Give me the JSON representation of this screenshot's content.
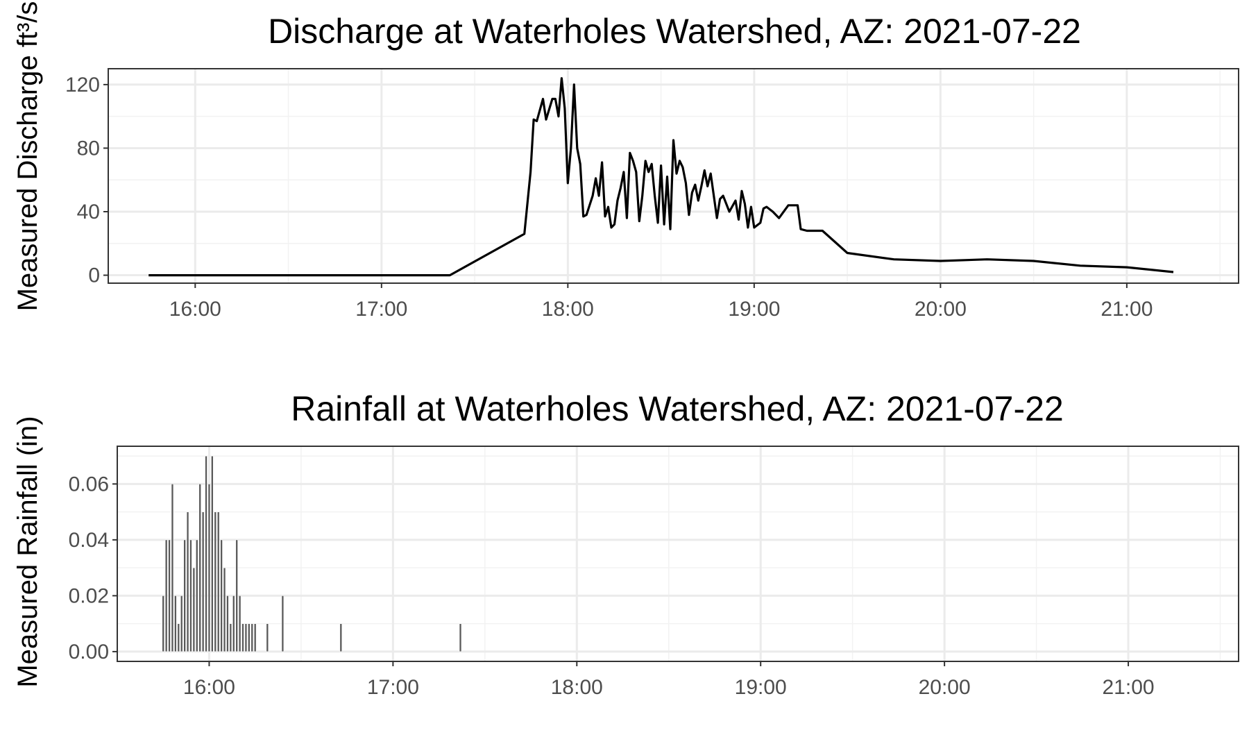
{
  "chart_data": [
    {
      "type": "line",
      "title": "Discharge at Waterholes Watershed, AZ: 2021-07-22",
      "xlabel": "",
      "ylabel": "Measured Discharge ft³/s",
      "x_is_time": true,
      "xlim": [
        "15:32",
        "21:36"
      ],
      "ylim": [
        -5,
        130
      ],
      "xticks": [
        "16:00",
        "17:00",
        "18:00",
        "19:00",
        "20:00",
        "21:00"
      ],
      "yticks": [
        0,
        40,
        80,
        120
      ],
      "grid": true,
      "series": [
        {
          "color": "#000000",
          "points": [
            [
              "15:45",
              0
            ],
            [
              "17:22",
              0
            ],
            [
              "17:46",
              26
            ],
            [
              "17:48",
              65
            ],
            [
              "17:49",
              98
            ],
            [
              "17:50",
              97
            ],
            [
              "17:52",
              111
            ],
            [
              "17:53",
              98
            ],
            [
              "17:55",
              111
            ],
            [
              "17:56",
              111
            ],
            [
              "17:57",
              100
            ],
            [
              "17:58",
              124
            ],
            [
              "17:59",
              105
            ],
            [
              "18:00",
              58
            ],
            [
              "18:01",
              80
            ],
            [
              "18:02",
              120
            ],
            [
              "18:03",
              80
            ],
            [
              "18:04",
              70
            ],
            [
              "18:05",
              37
            ],
            [
              "18:06",
              38
            ],
            [
              "18:08",
              50
            ],
            [
              "18:09",
              61
            ],
            [
              "18:10",
              50
            ],
            [
              "18:11",
              71
            ],
            [
              "18:12",
              37
            ],
            [
              "18:13",
              43
            ],
            [
              "18:14",
              30
            ],
            [
              "18:15",
              32
            ],
            [
              "18:16",
              47
            ],
            [
              "18:17",
              55
            ],
            [
              "18:18",
              65
            ],
            [
              "18:19",
              36
            ],
            [
              "18:20",
              77
            ],
            [
              "18:21",
              72
            ],
            [
              "18:22",
              65
            ],
            [
              "18:23",
              34
            ],
            [
              "18:24",
              50
            ],
            [
              "18:25",
              72
            ],
            [
              "18:26",
              65
            ],
            [
              "18:27",
              70
            ],
            [
              "18:28",
              50
            ],
            [
              "18:29",
              33
            ],
            [
              "18:30",
              69
            ],
            [
              "18:31",
              32
            ],
            [
              "18:32",
              62
            ],
            [
              "18:33",
              29
            ],
            [
              "18:34",
              85
            ],
            [
              "18:35",
              64
            ],
            [
              "18:36",
              72
            ],
            [
              "18:37",
              68
            ],
            [
              "18:38",
              58
            ],
            [
              "18:39",
              38
            ],
            [
              "18:40",
              52
            ],
            [
              "18:41",
              57
            ],
            [
              "18:42",
              47
            ],
            [
              "18:43",
              56
            ],
            [
              "18:44",
              66
            ],
            [
              "18:45",
              56
            ],
            [
              "18:46",
              64
            ],
            [
              "18:47",
              50
            ],
            [
              "18:48",
              36
            ],
            [
              "18:49",
              48
            ],
            [
              "18:50",
              50
            ],
            [
              "18:52",
              40
            ],
            [
              "18:54",
              47
            ],
            [
              "18:55",
              35
            ],
            [
              "18:56",
              53
            ],
            [
              "18:57",
              45
            ],
            [
              "18:58",
              30
            ],
            [
              "18:59",
              43
            ],
            [
              "19:00",
              30
            ],
            [
              "19:02",
              33
            ],
            [
              "19:03",
              42
            ],
            [
              "19:04",
              43
            ],
            [
              "19:06",
              40
            ],
            [
              "19:08",
              36
            ],
            [
              "19:11",
              44
            ],
            [
              "19:14",
              44
            ],
            [
              "19:15",
              29
            ],
            [
              "19:17",
              28
            ],
            [
              "19:20",
              28
            ],
            [
              "19:22",
              28
            ],
            [
              "19:30",
              14
            ],
            [
              "19:45",
              10
            ],
            [
              "20:00",
              9
            ],
            [
              "20:15",
              10
            ],
            [
              "20:30",
              9
            ],
            [
              "20:45",
              6
            ],
            [
              "21:00",
              5
            ],
            [
              "21:15",
              2
            ]
          ]
        }
      ]
    },
    {
      "type": "bar",
      "title": "Rainfall at Waterholes Watershed, AZ: 2021-07-22",
      "xlabel": "",
      "ylabel": "Measured Rainfall (in)",
      "x_is_time": true,
      "xlim": [
        "15:30",
        "21:36"
      ],
      "ylim": [
        -0.0035,
        0.0735
      ],
      "xticks": [
        "16:00",
        "17:00",
        "18:00",
        "19:00",
        "20:00",
        "21:00"
      ],
      "yticks": [
        "0.00",
        "0.02",
        "0.04",
        "0.06"
      ],
      "grid": true,
      "color": "#595959",
      "x": [
        "15:45",
        "15:46",
        "15:47",
        "15:48",
        "15:49",
        "15:50",
        "15:51",
        "15:52",
        "15:53",
        "15:54",
        "15:55",
        "15:56",
        "15:57",
        "15:58",
        "15:59",
        "16:00",
        "16:01",
        "16:02",
        "16:03",
        "16:04",
        "16:05",
        "16:06",
        "16:07",
        "16:08",
        "16:09",
        "16:10",
        "16:11",
        "16:12",
        "16:13",
        "16:14",
        "16:15",
        "16:19",
        "16:24",
        "16:43",
        "17:22"
      ],
      "values": [
        0.02,
        0.04,
        0.04,
        0.06,
        0.02,
        0.01,
        0.02,
        0.04,
        0.05,
        0.04,
        0.03,
        0.04,
        0.06,
        0.05,
        0.07,
        0.06,
        0.07,
        0.05,
        0.05,
        0.04,
        0.03,
        0.02,
        0.01,
        0.02,
        0.04,
        0.02,
        0.01,
        0.01,
        0.01,
        0.01,
        0.01,
        0.01,
        0.02,
        0.01,
        0.01
      ]
    }
  ]
}
